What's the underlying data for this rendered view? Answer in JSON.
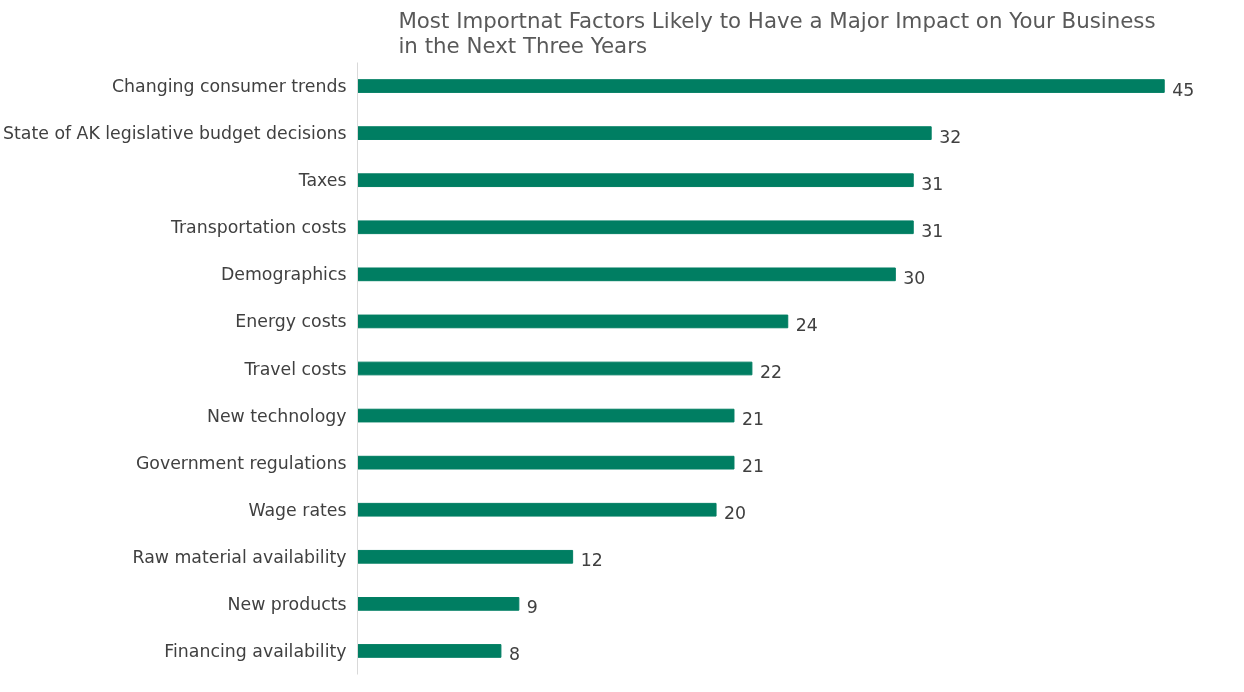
{
  "chart_data": {
    "type": "bar",
    "orientation": "horizontal",
    "title": "Most Importnat Factors Likely to Have a Major Impact on Your Business\nin the  Next Three Years",
    "categories": [
      "Changing consumer trends",
      "State of AK legislative budget decisions",
      "Taxes",
      "Transportation costs",
      "Demographics",
      "Energy costs",
      "Travel costs",
      "New technology",
      "Government regulations",
      "Wage rates",
      "Raw material availability",
      "New products",
      "Financing availability"
    ],
    "values": [
      45,
      32,
      31,
      31,
      30,
      24,
      22,
      21,
      21,
      20,
      12,
      9,
      8
    ],
    "color": "#007e62",
    "data_labels": true,
    "tick_labels": "y"
  }
}
